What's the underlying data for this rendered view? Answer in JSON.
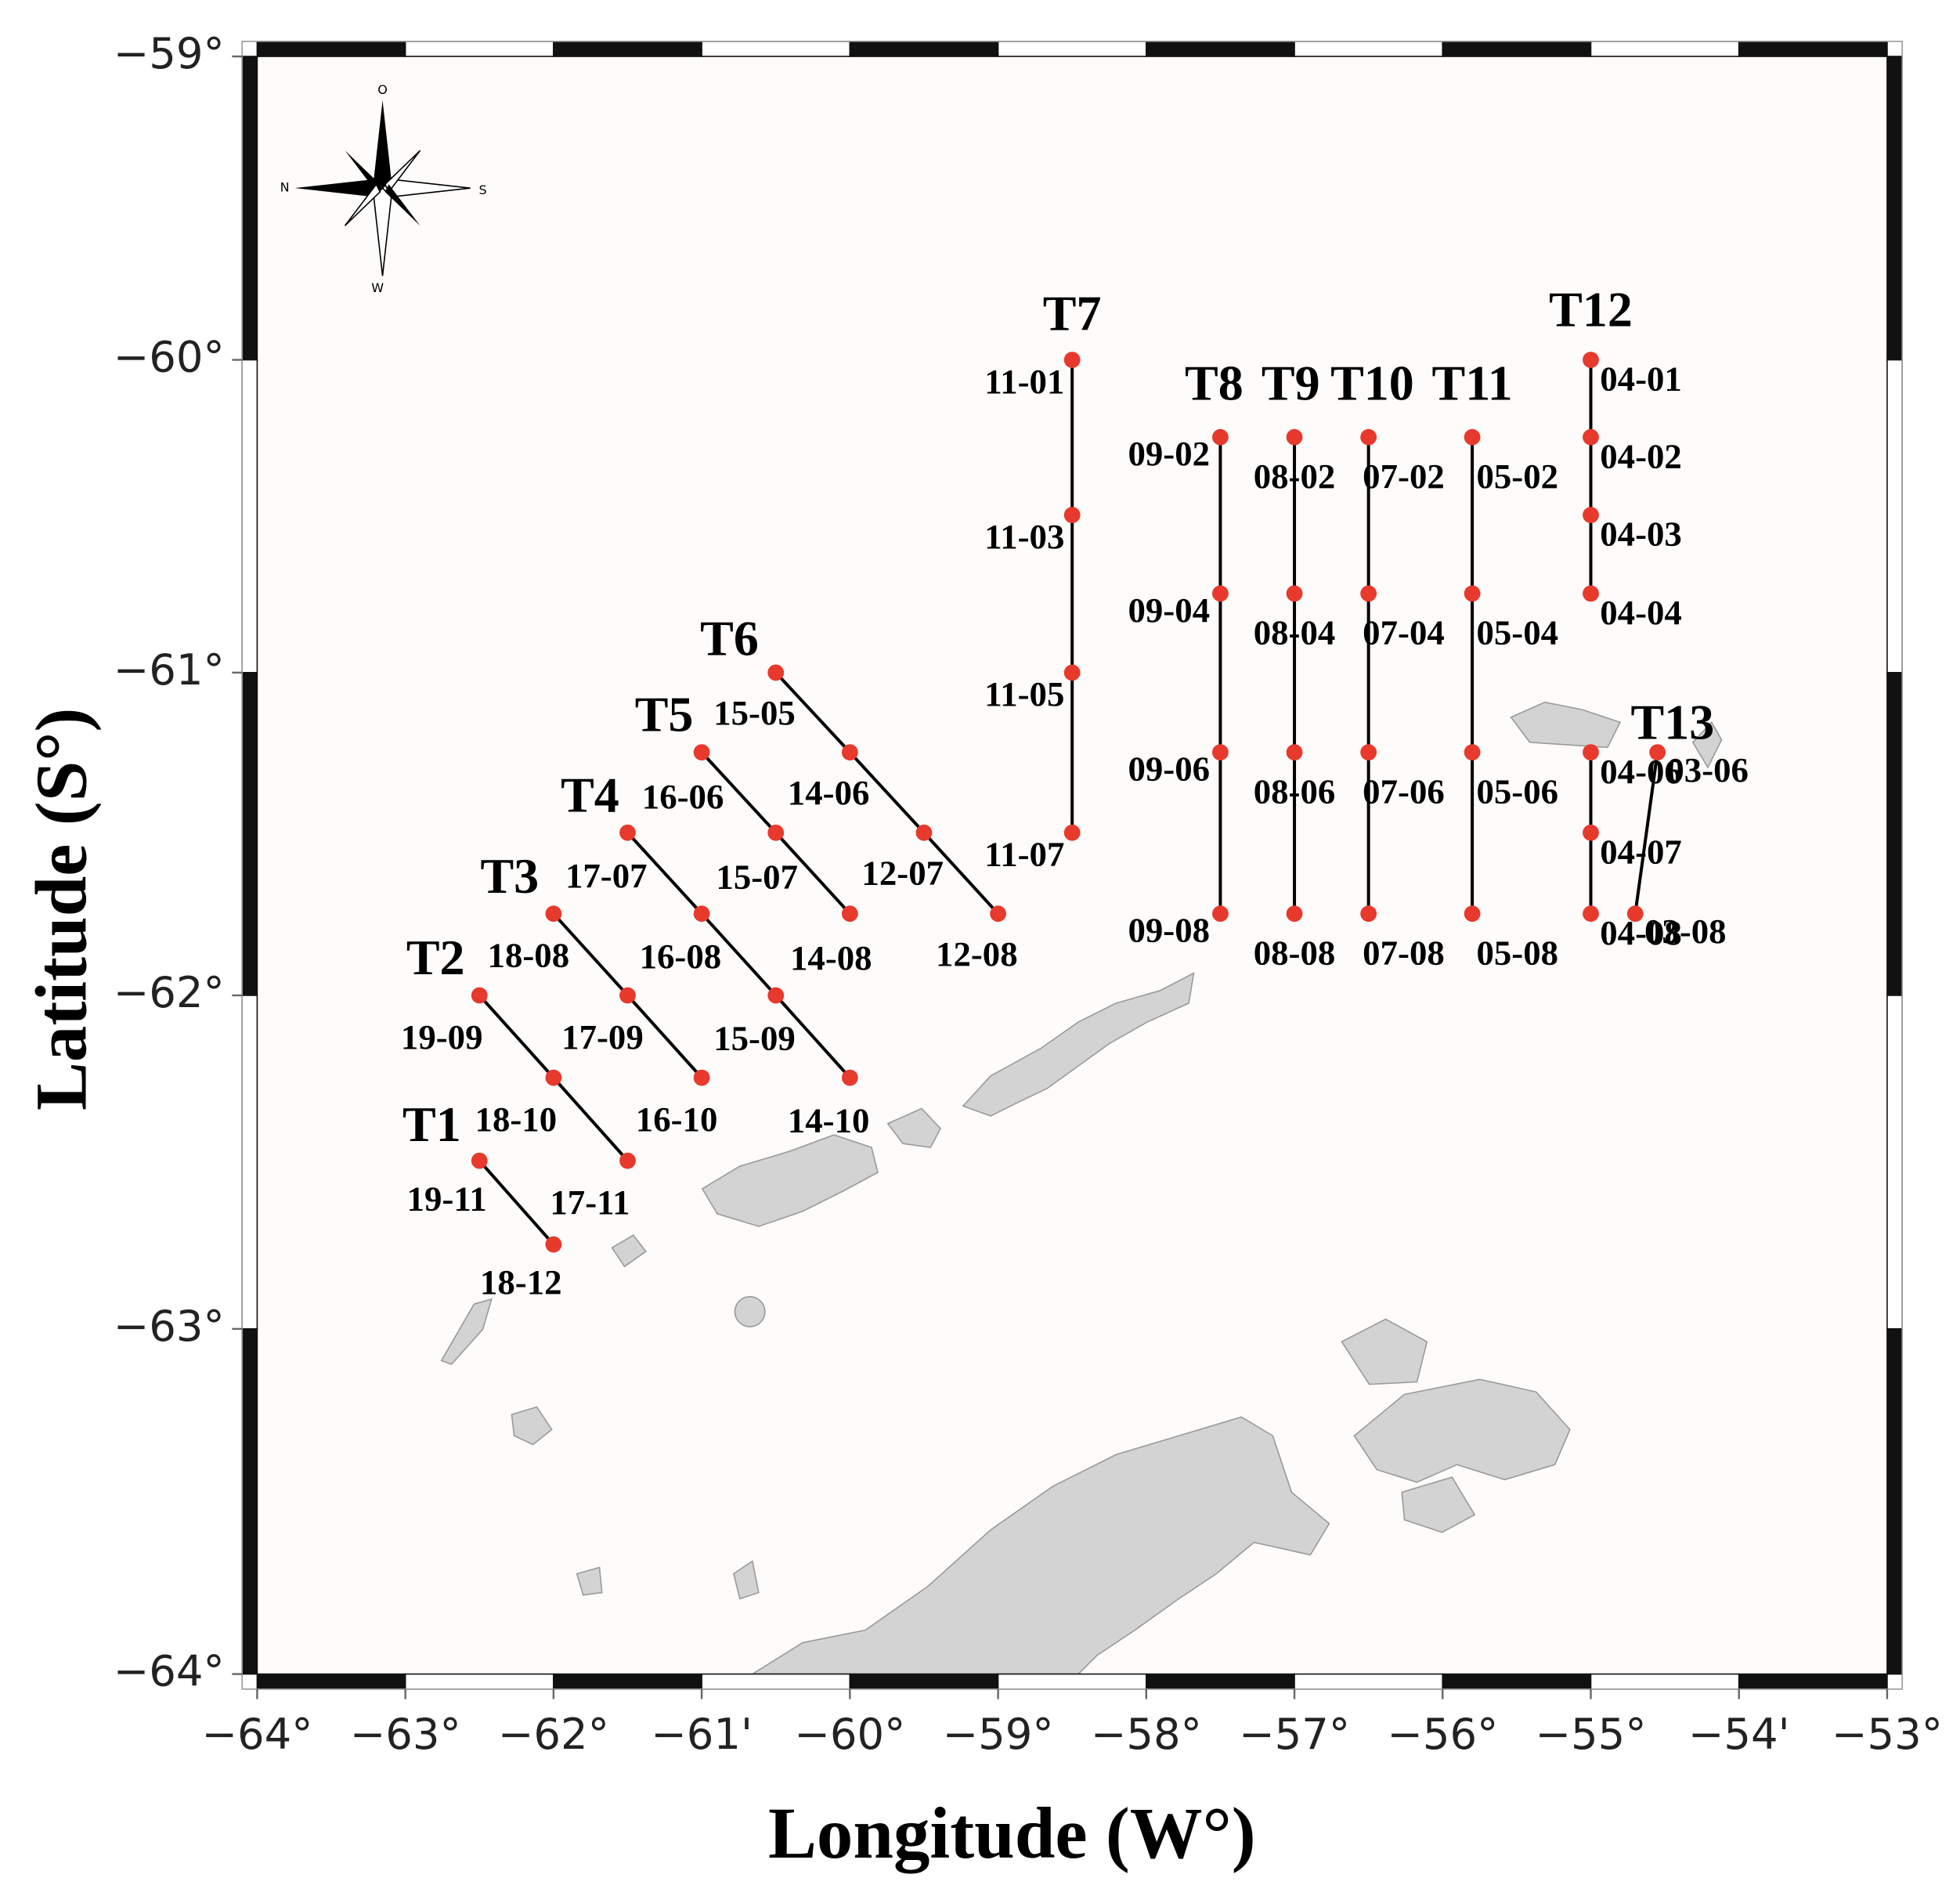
{
  "chart_data": {
    "type": "map",
    "xlabel": "Longitude (W°)",
    "ylabel": "Latitude (S°)",
    "xlim": [
      -64,
      -53
    ],
    "ylim": [
      -64,
      -59
    ],
    "xticks": [
      {
        "value": -64,
        "label": "−64°"
      },
      {
        "value": -63,
        "label": "−63°"
      },
      {
        "value": -62,
        "label": "−62°"
      },
      {
        "value": -61,
        "label": "−61'"
      },
      {
        "value": -60,
        "label": "−60°"
      },
      {
        "value": -59,
        "label": "−59°"
      },
      {
        "value": -58,
        "label": "−58°"
      },
      {
        "value": -57,
        "label": "−57°"
      },
      {
        "value": -56,
        "label": "−56°"
      },
      {
        "value": -55,
        "label": "−55°"
      },
      {
        "value": -54,
        "label": "−54'"
      },
      {
        "value": -53,
        "label": "−53°"
      }
    ],
    "yticks": [
      {
        "value": -59,
        "label": "−59°"
      },
      {
        "value": -60,
        "label": "−60°"
      },
      {
        "value": -61,
        "label": "−61°"
      },
      {
        "value": -62,
        "label": "−62°"
      },
      {
        "value": -63,
        "label": "−63°"
      },
      {
        "value": -64,
        "label": "−64°"
      }
    ],
    "projection": "mercator",
    "station_color": "#e8392d",
    "line_color": "#000000",
    "compass_labels": [
      "O",
      "S",
      "W",
      "N"
    ],
    "transects": [
      {
        "name": "T1",
        "stations": [
          {
            "lon": -62.5,
            "lat": -62.5,
            "label": "19-11"
          },
          {
            "lon": -62,
            "lat": -62.75,
            "label": "18-12"
          }
        ]
      },
      {
        "name": "T2",
        "stations": [
          {
            "lon": -62.5,
            "lat": -62,
            "label": "19-09"
          },
          {
            "lon": -62,
            "lat": -62.25,
            "label": "18-10"
          },
          {
            "lon": -61.5,
            "lat": -62.5,
            "label": "17-11"
          }
        ]
      },
      {
        "name": "T3",
        "stations": [
          {
            "lon": -62,
            "lat": -61.75,
            "label": "18-08"
          },
          {
            "lon": -61.5,
            "lat": -62,
            "label": "17-09"
          },
          {
            "lon": -61,
            "lat": -62.25,
            "label": "16-10"
          }
        ]
      },
      {
        "name": "T4",
        "stations": [
          {
            "lon": -61.5,
            "lat": -61.5,
            "label": "17-07"
          },
          {
            "lon": -61,
            "lat": -61.75,
            "label": "16-08"
          },
          {
            "lon": -60.5,
            "lat": -62,
            "label": "15-09"
          },
          {
            "lon": -60,
            "lat": -62.25,
            "label": "14-10"
          }
        ]
      },
      {
        "name": "T5",
        "stations": [
          {
            "lon": -61,
            "lat": -61.25,
            "label": "16-06"
          },
          {
            "lon": -60.5,
            "lat": -61.5,
            "label": "15-07"
          },
          {
            "lon": -60,
            "lat": -61.75,
            "label": "14-08"
          }
        ]
      },
      {
        "name": "T6",
        "stations": [
          {
            "lon": -60.5,
            "lat": -61,
            "label": "15-05"
          },
          {
            "lon": -60,
            "lat": -61.25,
            "label": "14-06"
          },
          {
            "lon": -59.5,
            "lat": -61.5,
            "label": "12-07"
          },
          {
            "lon": -59,
            "lat": -61.75,
            "label": "12-08"
          }
        ]
      },
      {
        "name": "T7",
        "stations": [
          {
            "lon": -58.5,
            "lat": -60,
            "label": "11-01"
          },
          {
            "lon": -58.5,
            "lat": -60.5,
            "label": "11-03"
          },
          {
            "lon": -58.5,
            "lat": -61,
            "label": "11-05"
          },
          {
            "lon": -58.5,
            "lat": -61.5,
            "label": "11-07"
          }
        ]
      },
      {
        "name": "T8",
        "stations": [
          {
            "lon": -57.5,
            "lat": -60.25,
            "label": "09-02"
          },
          {
            "lon": -57.5,
            "lat": -60.75,
            "label": "09-04"
          },
          {
            "lon": -57.5,
            "lat": -61.25,
            "label": "09-06"
          },
          {
            "lon": -57.5,
            "lat": -61.75,
            "label": "09-08"
          }
        ]
      },
      {
        "name": "T9",
        "stations": [
          {
            "lon": -57,
            "lat": -60.25,
            "label": "08-02"
          },
          {
            "lon": -57,
            "lat": -60.75,
            "label": "08-04"
          },
          {
            "lon": -57,
            "lat": -61.25,
            "label": "08-06"
          },
          {
            "lon": -57,
            "lat": -61.75,
            "label": "08-08"
          }
        ]
      },
      {
        "name": "T10",
        "stations": [
          {
            "lon": -56.5,
            "lat": -60.25,
            "label": "07-02"
          },
          {
            "lon": -56.5,
            "lat": -60.75,
            "label": "07-04"
          },
          {
            "lon": -56.5,
            "lat": -61.25,
            "label": "07-06"
          },
          {
            "lon": -56.5,
            "lat": -61.75,
            "label": "07-08"
          }
        ]
      },
      {
        "name": "T11",
        "stations": [
          {
            "lon": -55.8,
            "lat": -60.25,
            "label": "05-02"
          },
          {
            "lon": -55.8,
            "lat": -60.75,
            "label": "05-04"
          },
          {
            "lon": -55.8,
            "lat": -61.25,
            "label": "05-06"
          },
          {
            "lon": -55.8,
            "lat": -61.75,
            "label": "05-08"
          }
        ]
      },
      {
        "name": "T12",
        "stations": [
          {
            "lon": -55,
            "lat": -60,
            "label": "04-01"
          },
          {
            "lon": -55,
            "lat": -60.25,
            "label": "04-02"
          },
          {
            "lon": -55,
            "lat": -60.5,
            "label": "04-03"
          },
          {
            "lon": -55,
            "lat": -60.75,
            "label": "04-04"
          },
          null,
          {
            "lon": -55,
            "lat": -61.25,
            "label": "04-06"
          },
          {
            "lon": -55,
            "lat": -61.5,
            "label": "04-07"
          },
          {
            "lon": -55,
            "lat": -61.75,
            "label": "04-08"
          }
        ]
      },
      {
        "name": "T13",
        "stations": [
          {
            "lon": -54.55,
            "lat": -61.25,
            "label": "03-06"
          },
          {
            "lon": -54.7,
            "lat": -61.75,
            "label": "03-08"
          }
        ]
      }
    ]
  }
}
